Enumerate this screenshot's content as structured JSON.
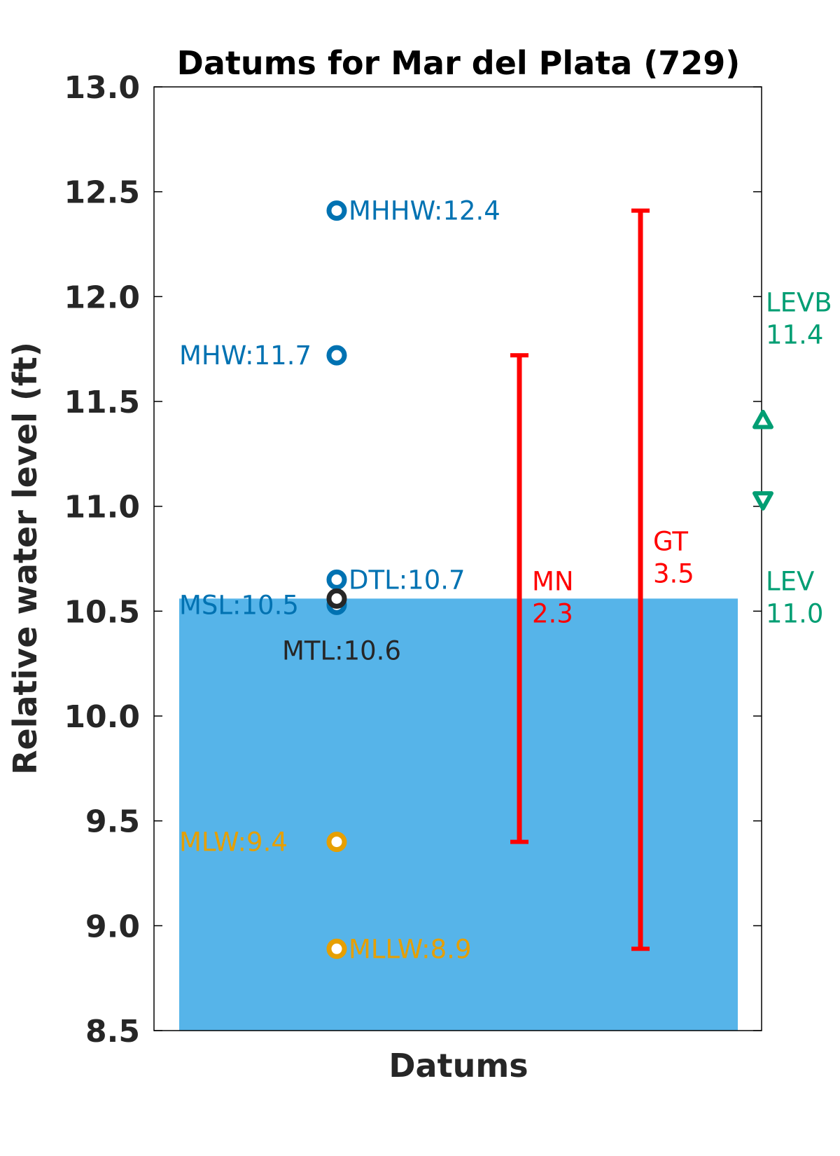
{
  "chart_data": {
    "type": "scatter",
    "title": "Datums for Mar del Plata (729)",
    "xlabel": "Datums",
    "ylabel": "Relative water level (ft)",
    "ylim": [
      8.5,
      13.0
    ],
    "yticks": [
      "8.5",
      "9.0",
      "9.5",
      "10.0",
      "10.5",
      "11.0",
      "11.5",
      "12.0",
      "12.5",
      "13.0"
    ],
    "grid": false,
    "shaded_region": {
      "from": 8.5,
      "to": 10.56,
      "color": "#56B4E9"
    },
    "datums": [
      {
        "name": "MHHW",
        "value": 12.41,
        "label": "MHHW:12.4",
        "color": "#0072B2",
        "label_side": "right"
      },
      {
        "name": "MHW",
        "value": 11.72,
        "label": "MHW:11.7",
        "color": "#0072B2",
        "label_side": "left"
      },
      {
        "name": "DTL",
        "value": 10.65,
        "label": "DTL:10.7",
        "color": "#0072B2",
        "label_side": "right"
      },
      {
        "name": "MSL",
        "value": 10.53,
        "label": "MSL:10.5",
        "color": "#0072B2",
        "label_side": "left"
      },
      {
        "name": "MTL",
        "value": 10.56,
        "label": "MTL:10.6",
        "color": "#262626",
        "label_side": "below"
      },
      {
        "name": "MLW",
        "value": 9.4,
        "label": "MLW:9.4",
        "color": "#E69F00",
        "label_side": "left"
      },
      {
        "name": "MLLW",
        "value": 8.89,
        "label": "MLLW:8.9",
        "color": "#E69F00",
        "label_side": "right"
      }
    ],
    "ranges": [
      {
        "name": "MN",
        "from": 9.4,
        "to": 11.72,
        "label_line1": "MN",
        "label_line2": "2.3",
        "color": "#FF0000"
      },
      {
        "name": "GT",
        "from": 8.89,
        "to": 12.41,
        "label_line1": "GT",
        "label_line2": "3.5",
        "color": "#FF0000"
      }
    ],
    "levels": [
      {
        "name": "LEVB",
        "value": 11.41,
        "marker": "triangle-up",
        "label_line1": "LEVB",
        "label_line2": "11.4",
        "color": "#009E73"
      },
      {
        "name": "LEV",
        "value": 11.03,
        "marker": "triangle-down",
        "label_line1": "LEV",
        "label_line2": "11.0",
        "color": "#009E73"
      }
    ]
  }
}
